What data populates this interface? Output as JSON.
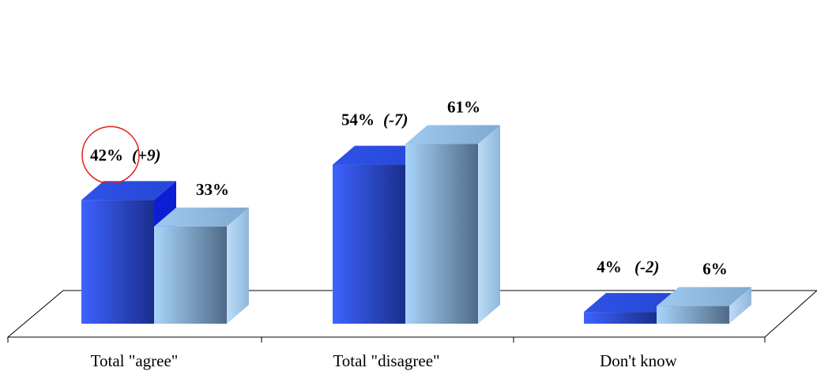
{
  "chart_data": {
    "type": "bar",
    "style": "3d-clustered-column",
    "categories": [
      "Total \"agree\"",
      "Total \"disagree\"",
      "Don't know"
    ],
    "series": [
      {
        "values": [
          42,
          54,
          4
        ],
        "changes": [
          "(+9)",
          "(-7)",
          "(-2)"
        ],
        "color": "#2244dd"
      },
      {
        "values": [
          33,
          61,
          6
        ],
        "changes": [
          "",
          "",
          ""
        ],
        "color": "#8fbde6"
      }
    ],
    "value_suffix": "%",
    "ylim": [
      0,
      70
    ],
    "grid": false,
    "legend": "none",
    "title": "",
    "xlabel": "",
    "ylabel": "",
    "annotations": [
      {
        "type": "circle",
        "category": 0,
        "series": 0,
        "color": "#e02020"
      }
    ]
  }
}
